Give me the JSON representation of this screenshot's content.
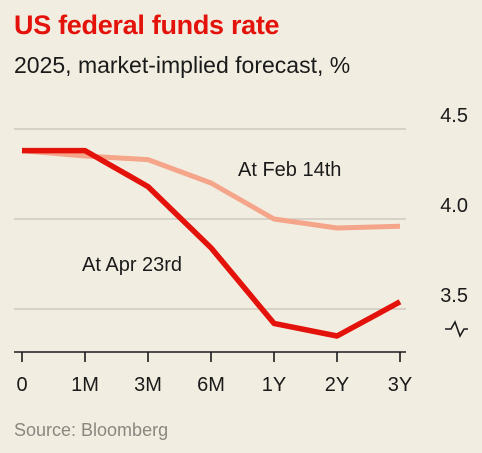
{
  "header": {
    "title": "US federal funds rate",
    "subtitle": "2025, market-implied forecast, %"
  },
  "footer": {
    "source": "Source: Bloomberg"
  },
  "colors": {
    "apr": "#e3120b",
    "feb": "#f4a58a",
    "grid": "#c6c2b9",
    "axis": "#1a1a1a",
    "background": "#f2ede1"
  },
  "chart_data": {
    "type": "line",
    "categories": [
      "0",
      "1M",
      "3M",
      "6M",
      "1Y",
      "2Y",
      "3Y"
    ],
    "series": [
      {
        "name": "At Feb 14th",
        "values": [
          4.38,
          4.35,
          4.33,
          4.2,
          4.0,
          3.95,
          3.96
        ]
      },
      {
        "name": "At Apr 23rd",
        "values": [
          4.38,
          4.38,
          4.18,
          3.84,
          3.42,
          3.35,
          3.54
        ]
      }
    ],
    "y_ticks": [
      "4.5",
      "4.0",
      "3.5"
    ],
    "ylim": [
      3.3,
      4.5
    ],
    "y_axis_break": true,
    "grid": true
  }
}
